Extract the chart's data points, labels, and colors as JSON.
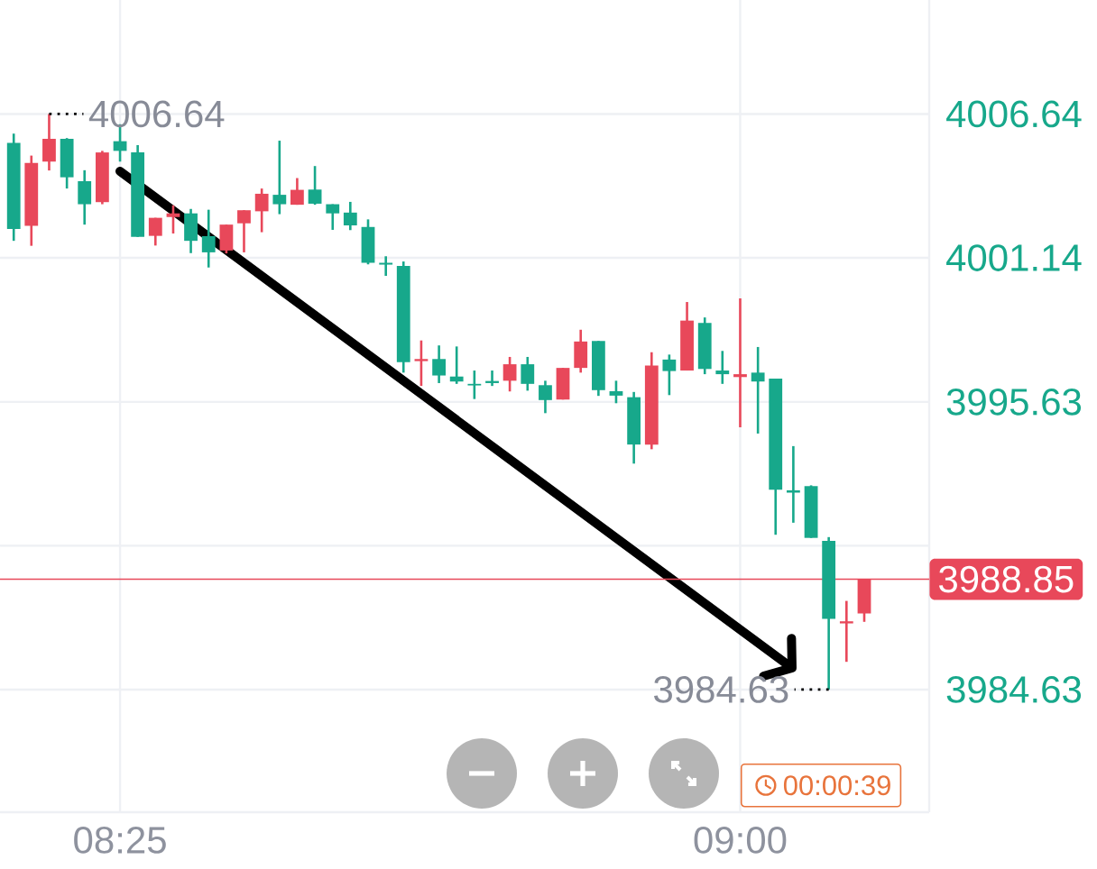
{
  "chart_data": {
    "type": "candlestick",
    "x": [
      8.3167,
      8.3333,
      8.35,
      8.3667,
      8.3833,
      8.4,
      8.4167,
      8.4333,
      8.45,
      8.4667,
      8.4833,
      8.5,
      8.5167,
      8.5333,
      8.55,
      8.5667,
      8.5833,
      8.6,
      8.6167,
      8.6333,
      8.65,
      8.6667,
      8.6833,
      8.7,
      8.7167,
      8.7333,
      8.75,
      8.7667,
      8.7833,
      8.8,
      8.8167,
      8.8333,
      8.85,
      8.8667,
      8.8833,
      8.9,
      8.9167,
      8.9333,
      8.95,
      8.9667,
      8.9833,
      9.0,
      9.0167,
      9.0333,
      9.05,
      9.0667,
      9.0833,
      9.1,
      9.1167
    ],
    "ohlc": [
      [
        4005.54,
        4005.89,
        4001.79,
        4002.24
      ],
      [
        4002.36,
        4005.05,
        4001.6,
        4004.77
      ],
      [
        4004.82,
        4006.64,
        4004.48,
        4005.69
      ],
      [
        4005.69,
        4005.72,
        4003.79,
        4004.22
      ],
      [
        4004.07,
        4004.49,
        4002.41,
        4003.19
      ],
      [
        4003.27,
        4005.23,
        4003.19,
        4005.17
      ],
      [
        4005.6,
        4006.25,
        4004.82,
        4005.23
      ],
      [
        4005.17,
        4005.45,
        4001.94,
        4001.94
      ],
      [
        4001.98,
        4002.67,
        4001.61,
        4002.67
      ],
      [
        4002.7,
        4003.15,
        4002.07,
        4002.84
      ],
      [
        4002.84,
        4003.01,
        4001.32,
        4001.79
      ],
      [
        4001.97,
        4002.98,
        4000.77,
        4001.35
      ],
      [
        4001.42,
        4002.41,
        4001.31,
        4002.41
      ],
      [
        4002.46,
        4002.96,
        4001.35,
        4002.96
      ],
      [
        4002.92,
        4003.79,
        4002.12,
        4003.59
      ],
      [
        4003.55,
        4005.62,
        4002.81,
        4003.19
      ],
      [
        4003.17,
        4004.19,
        4003.17,
        4003.74
      ],
      [
        4003.75,
        4004.65,
        4003.17,
        4003.21
      ],
      [
        4003.19,
        4003.19,
        4002.21,
        4002.84
      ],
      [
        4002.87,
        4003.28,
        4002.2,
        4002.38
      ],
      [
        4002.32,
        4002.61,
        4000.89,
        4000.95
      ],
      [
        4000.95,
        4001.2,
        4000.45,
        4000.88
      ],
      [
        4000.83,
        4001.0,
        3996.75,
        3997.15
      ],
      [
        3997.19,
        3997.98,
        3996.24,
        3997.27
      ],
      [
        3997.27,
        3997.79,
        3996.35,
        3996.64
      ],
      [
        3996.6,
        3997.75,
        3996.32,
        3996.41
      ],
      [
        3996.32,
        3996.83,
        3995.74,
        3996.26
      ],
      [
        3996.43,
        3996.83,
        3996.24,
        3996.35
      ],
      [
        3996.44,
        3997.35,
        3996.03,
        3997.07
      ],
      [
        3997.07,
        3997.35,
        3996.06,
        3996.32
      ],
      [
        3996.27,
        3996.44,
        3995.2,
        3995.7
      ],
      [
        3995.72,
        3996.93,
        3995.72,
        3996.93
      ],
      [
        3996.93,
        3998.39,
        3996.75,
        3997.94
      ],
      [
        3997.96,
        3997.96,
        3995.86,
        3996.08
      ],
      [
        3996.04,
        3996.44,
        3995.58,
        3995.87
      ],
      [
        3995.81,
        3996.01,
        3993.27,
        3994.0
      ],
      [
        3994.0,
        3997.53,
        3993.82,
        3997.02
      ],
      [
        3997.25,
        3997.44,
        3995.89,
        3996.81
      ],
      [
        3996.83,
        3999.45,
        3996.83,
        3998.74
      ],
      [
        3998.65,
        3998.86,
        3996.69,
        3996.89
      ],
      [
        3996.83,
        3997.58,
        3996.32,
        3996.69
      ],
      [
        3996.58,
        3999.59,
        3994.66,
        3996.69
      ],
      [
        3996.75,
        3997.73,
        3994.42,
        3996.41
      ],
      [
        3996.52,
        3996.52,
        3990.55,
        3992.27
      ],
      [
        3992.25,
        3993.94,
        3991.01,
        3992.16
      ],
      [
        3992.41,
        3992.44,
        3990.43,
        3990.43
      ],
      [
        3990.32,
        3990.46,
        3984.63,
        3987.33
      ],
      [
        3987.16,
        3988.02,
        3985.69,
        3987.24
      ],
      [
        3987.54,
        3988.85,
        3987.22,
        3988.85
      ]
    ],
    "colors": [
      "#17A88B",
      "#E8485A",
      "#E8485A",
      "#17A88B",
      "#17A88B",
      "#E8485A",
      "#17A88B",
      "#17A88B",
      "#E8485A",
      "#E8485A",
      "#17A88B",
      "#17A88B",
      "#E8485A",
      "#E8485A",
      "#E8485A",
      "#17A88B",
      "#E8485A",
      "#17A88B",
      "#17A88B",
      "#17A88B",
      "#17A88B",
      "#17A88B",
      "#17A88B",
      "#E8485A",
      "#17A88B",
      "#17A88B",
      "#17A88B",
      "#17A88B",
      "#E8485A",
      "#17A88B",
      "#17A88B",
      "#E8485A",
      "#E8485A",
      "#17A88B",
      "#17A88B",
      "#17A88B",
      "#E8485A",
      "#17A88B",
      "#E8485A",
      "#17A88B",
      "#17A88B",
      "#E8485A",
      "#17A88B",
      "#17A88B",
      "#17A88B",
      "#17A88B",
      "#17A88B",
      "#E8485A",
      "#E8485A"
    ],
    "xlim": [
      8.3038,
      9.1778
    ],
    "ylim": [
      3979.94,
      4011.0
    ],
    "xticks": [
      {
        "value": 8.4167,
        "label": "08:25"
      },
      {
        "value": 9.0,
        "label": "09:00"
      }
    ],
    "yticks": [
      3984.63,
      {
        "value": 3990.13,
        "label": null
      },
      3995.63,
      4001.14,
      4006.64
    ],
    "grid": true,
    "ref_lines": [
      {
        "axis": "y",
        "value": 3988.85,
        "label": "3988.85",
        "color": "#E8485A"
      }
    ],
    "annotations": [
      {
        "text": "4006.64",
        "x": 8.35,
        "y": 4006.64
      },
      {
        "text": "3984.63",
        "x": 9.0833,
        "y": 3984.63
      },
      "00:00:39"
    ]
  }
}
